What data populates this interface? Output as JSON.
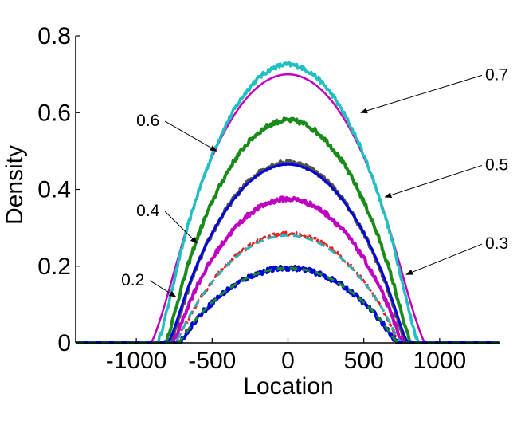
{
  "chart_data": {
    "type": "line",
    "title": "",
    "xlabel": "Location",
    "ylabel": "Density",
    "xlim": [
      -1400,
      1400
    ],
    "ylim": [
      0,
      0.8
    ],
    "x_ticks": [
      -1000,
      -500,
      0,
      500,
      1000
    ],
    "x_tick_labels": [
      "-1000",
      "-500",
      "0",
      "500",
      "1000"
    ],
    "y_ticks": [
      0,
      0.2,
      0.4,
      0.6,
      0.8
    ],
    "y_tick_labels": [
      "0",
      "0.2",
      "0.4",
      "0.6",
      "0.8"
    ],
    "grid": false,
    "legend": "none",
    "series": [
      {
        "peak": 0.7,
        "color": "#c000c0",
        "style": "solid",
        "width": 2.5,
        "half_width": 900,
        "edge_soft": 220
      },
      {
        "peak": 0.725,
        "color": "#20c0c0",
        "style": "noisy",
        "width": 3.5,
        "half_width": 860,
        "edge_soft": 120
      },
      {
        "peak": 0.58,
        "color": "#1a8a1a",
        "style": "noisy",
        "width": 4,
        "half_width": 810,
        "edge_soft": 90
      },
      {
        "peak": 0.47,
        "color": "#505050",
        "style": "noisy",
        "width": 4,
        "half_width": 780,
        "edge_soft": 80
      },
      {
        "peak": 0.465,
        "color": "#0000e0",
        "style": "solid",
        "width": 3,
        "half_width": 790,
        "edge_soft": 90
      },
      {
        "peak": 0.375,
        "color": "#c000c0",
        "style": "noisy",
        "width": 4,
        "half_width": 760,
        "edge_soft": 70
      },
      {
        "peak": 0.285,
        "color": "#e02020",
        "style": "noisy-dash",
        "width": 2.5,
        "half_width": 740,
        "edge_soft": 60
      },
      {
        "peak": 0.28,
        "color": "#30b0b0",
        "style": "dashed",
        "width": 3,
        "half_width": 745,
        "edge_soft": 60
      },
      {
        "peak": 0.195,
        "color": "#0000e0",
        "style": "noisy",
        "width": 4,
        "half_width": 720,
        "edge_soft": 55
      },
      {
        "peak": 0.195,
        "color": "#1a8a1a",
        "style": "dashed",
        "width": 3,
        "half_width": 725,
        "edge_soft": 55
      }
    ],
    "annotations": [
      {
        "text": "0.7",
        "text_at": [
          1300,
          0.685
        ],
        "arrow_to": [
          480,
          0.6
        ]
      },
      {
        "text": "0.6",
        "text_at": [
          -1000,
          0.565
        ],
        "arrow_to": [
          -470,
          0.5
        ]
      },
      {
        "text": "0.5",
        "text_at": [
          1300,
          0.45
        ],
        "arrow_to": [
          640,
          0.38
        ]
      },
      {
        "text": "0.4",
        "text_at": [
          -1000,
          0.33
        ],
        "arrow_to": [
          -600,
          0.26
        ]
      },
      {
        "text": "0.3",
        "text_at": [
          1300,
          0.245
        ],
        "arrow_to": [
          780,
          0.178
        ]
      },
      {
        "text": "0.2",
        "text_at": [
          -1100,
          0.15
        ],
        "arrow_to": [
          -740,
          0.12
        ]
      }
    ]
  }
}
